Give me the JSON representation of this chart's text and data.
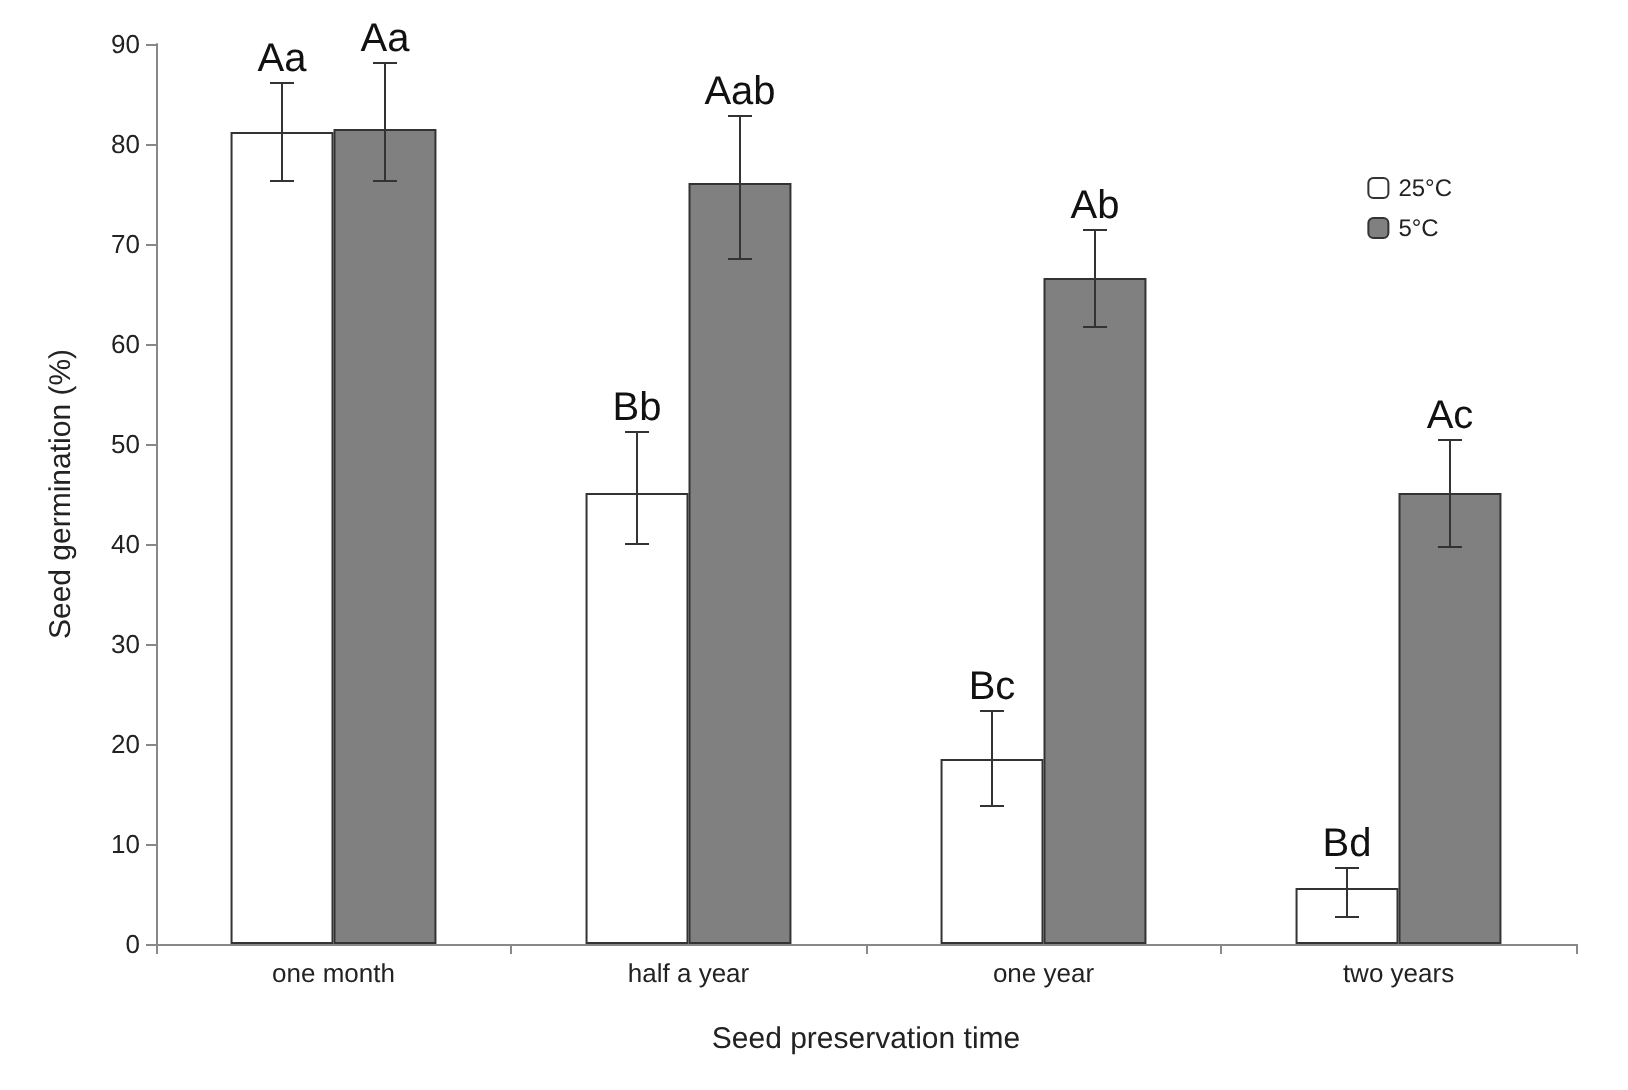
{
  "chart_data": {
    "type": "bar",
    "xlabel": "Seed preservation time",
    "ylabel": "Seed germination (%)",
    "categories": [
      "one month",
      "half a year",
      "one year",
      "two years"
    ],
    "series": [
      {
        "name": "25°C",
        "color": "#ffffff",
        "values": [
          81.2,
          45.1,
          18.5,
          5.6
        ],
        "errors": [
          [
            76.3,
            86.1
          ],
          [
            40.0,
            51.2
          ],
          [
            13.8,
            23.3
          ],
          [
            2.7,
            7.6
          ]
        ],
        "value_labels": [
          "Aa",
          "Bb",
          "Bc",
          "Bd"
        ]
      },
      {
        "name": "5°C",
        "color": "#808080",
        "values": [
          81.5,
          76.1,
          66.6,
          45.1
        ],
        "errors": [
          [
            76.3,
            88.1
          ],
          [
            68.5,
            82.8
          ],
          [
            61.7,
            71.4
          ],
          [
            39.7,
            50.4
          ]
        ],
        "value_labels": [
          "Aa",
          "Aab",
          "Ab",
          "Ac"
        ]
      }
    ],
    "ylim": [
      0,
      90
    ],
    "yticks": [
      0,
      10,
      20,
      30,
      40,
      50,
      60,
      70,
      80,
      90
    ],
    "grid": false,
    "legend": "top right"
  }
}
